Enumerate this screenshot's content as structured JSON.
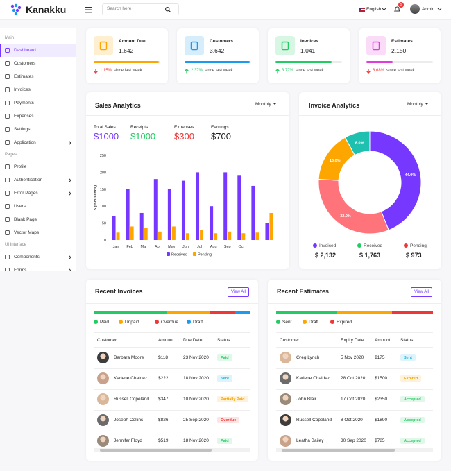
{
  "header": {
    "brand": "Kanakku",
    "search_placeholder": "Search here",
    "language": "English",
    "notifications": 5,
    "user": "Admin"
  },
  "sidebar": {
    "sections": [
      {
        "title": "Main",
        "items": [
          {
            "label": "Dashboard",
            "active": true
          },
          {
            "label": "Customers"
          },
          {
            "label": "Estimates"
          },
          {
            "label": "Invoices"
          },
          {
            "label": "Payments"
          },
          {
            "label": "Expenses"
          },
          {
            "label": "Settings"
          },
          {
            "label": "Application",
            "submenu": true
          }
        ]
      },
      {
        "title": "Pages",
        "items": [
          {
            "label": "Profile"
          },
          {
            "label": "Authentication",
            "submenu": true
          },
          {
            "label": "Error Pages",
            "submenu": true
          },
          {
            "label": "Users"
          },
          {
            "label": "Blank Page"
          },
          {
            "label": "Vector Maps"
          }
        ]
      },
      {
        "title": "UI Interface",
        "items": [
          {
            "label": "Components",
            "submenu": true
          },
          {
            "label": "Forms",
            "submenu": true
          }
        ]
      }
    ]
  },
  "stats": [
    {
      "title": "Amount Due",
      "value": "1,642",
      "change": "1.15%",
      "direction": "down",
      "note": "since last week",
      "color": "#fda600"
    },
    {
      "title": "Customers",
      "value": "3,642",
      "change": "2.37%",
      "direction": "up",
      "note": "since last week",
      "color": "#1b9bf0"
    },
    {
      "title": "Invoices",
      "value": "1,041",
      "change": "3.77%",
      "direction": "up",
      "note": "since last week",
      "color": "#22cc62"
    },
    {
      "title": "Estimates",
      "value": "2,150",
      "change": "8.68%",
      "direction": "down",
      "note": "since last week",
      "color": "#e23bdd"
    }
  ],
  "sales_analytics": {
    "title": "Sales Analytics",
    "period": "Monthly",
    "summary": [
      {
        "label": "Total Sales",
        "value": "$1000",
        "color": "#7638ff"
      },
      {
        "label": "Receipts",
        "value": "$1000",
        "color": "#22cc62"
      },
      {
        "label": "Expenses",
        "value": "$300",
        "color": "#ef3737"
      },
      {
        "label": "Earnings",
        "value": "$700",
        "color": "#1f1f1f"
      }
    ],
    "chart": {
      "type": "bar",
      "y_label": "$ (thousands)",
      "categories": [
        "Jan",
        "Feb",
        "Mar",
        "Apr",
        "May",
        "Jun",
        "Jul",
        "Aug",
        "Sep",
        "Oct",
        null,
        null
      ],
      "series": [
        {
          "name": "Received",
          "color": "#7638ff",
          "values": [
            70,
            150,
            80,
            180,
            150,
            175,
            200,
            100,
            200,
            190,
            160,
            50
          ]
        },
        {
          "name": "Pending",
          "color": "#fda600",
          "values": [
            22,
            40,
            35,
            25,
            40,
            20,
            30,
            20,
            25,
            20,
            22,
            80
          ]
        }
      ],
      "ylim": [
        0,
        250
      ],
      "yticks": [
        0,
        50,
        100,
        150,
        200,
        250
      ],
      "grid": false
    }
  },
  "invoice_analytics": {
    "title": "Invoice Analytics",
    "period": "Monthly",
    "chart": {
      "type": "pie",
      "donut": true,
      "values": [
        44,
        32,
        16,
        8
      ],
      "value_labels": [
        "44.0%",
        "32.0%",
        "16.0%",
        "8.0%"
      ],
      "colors": [
        "#7638ff",
        "#ff737b",
        "#fda600",
        "#1ec1b0"
      ]
    },
    "legend": [
      {
        "label": "Invoiced",
        "value": "$ 2,132",
        "color": "#7638ff"
      },
      {
        "label": "Received",
        "value": "$ 1,763",
        "color": "#22cc62"
      },
      {
        "label": "Pending",
        "value": "$ 973",
        "color": "#ef3737"
      }
    ]
  },
  "recent_invoices": {
    "title": "Recent Invoices",
    "action": "View All",
    "legend": [
      {
        "label": "Paid",
        "color": "#22cc62"
      },
      {
        "label": "Unpaid",
        "color": "#fda600"
      },
      {
        "label": "Overdue",
        "color": "#ef3737"
      },
      {
        "label": "Draft",
        "color": "#1b9bf0"
      }
    ],
    "columns": [
      "Customer",
      "Amount",
      "Due Date",
      "Status"
    ],
    "rows": [
      {
        "cells": [
          "Barbara Moore",
          "$118",
          "23 Nov 2020",
          "Paid"
        ],
        "tone": "success"
      },
      {
        "cells": [
          "Karlene Chaidez",
          "$222",
          "18 Nov 2020",
          "Sent"
        ],
        "tone": "info"
      },
      {
        "cells": [
          "Russell Copeland",
          "$347",
          "10 Nov 2020",
          "Partially Paid"
        ],
        "tone": "warning"
      },
      {
        "cells": [
          "Joseph Collins",
          "$826",
          "25 Sep 2020",
          "Overdue"
        ],
        "tone": "danger"
      },
      {
        "cells": [
          "Jennifer Floyd",
          "$519",
          "18 Nov 2020",
          "Paid"
        ],
        "tone": "success"
      }
    ]
  },
  "recent_estimates": {
    "title": "Recent Estimates",
    "action": "View All",
    "legend": [
      {
        "label": "Sent",
        "color": "#22cc62"
      },
      {
        "label": "Draft",
        "color": "#fda600"
      },
      {
        "label": "Expired",
        "color": "#ef3737"
      }
    ],
    "columns": [
      "Customer",
      "Expiry Date",
      "Amount",
      "Status"
    ],
    "rows": [
      {
        "cells": [
          "Greg Lynch",
          "5 Nov 2020",
          "$175",
          "Sent"
        ],
        "tone": "info"
      },
      {
        "cells": [
          "Karlene Chaidez",
          "28 Oct 2020",
          "$1500",
          "Expired"
        ],
        "tone": "warning"
      },
      {
        "cells": [
          "John Blair",
          "17 Oct 2020",
          "$2350",
          "Accepted"
        ],
        "tone": "success"
      },
      {
        "cells": [
          "Russell Copeland",
          "8 Oct 2020",
          "$1890",
          "Accepted"
        ],
        "tone": "success"
      },
      {
        "cells": [
          "Leatha Bailey",
          "30 Sep 2020",
          "$785",
          "Accepted"
        ],
        "tone": "success"
      }
    ]
  }
}
